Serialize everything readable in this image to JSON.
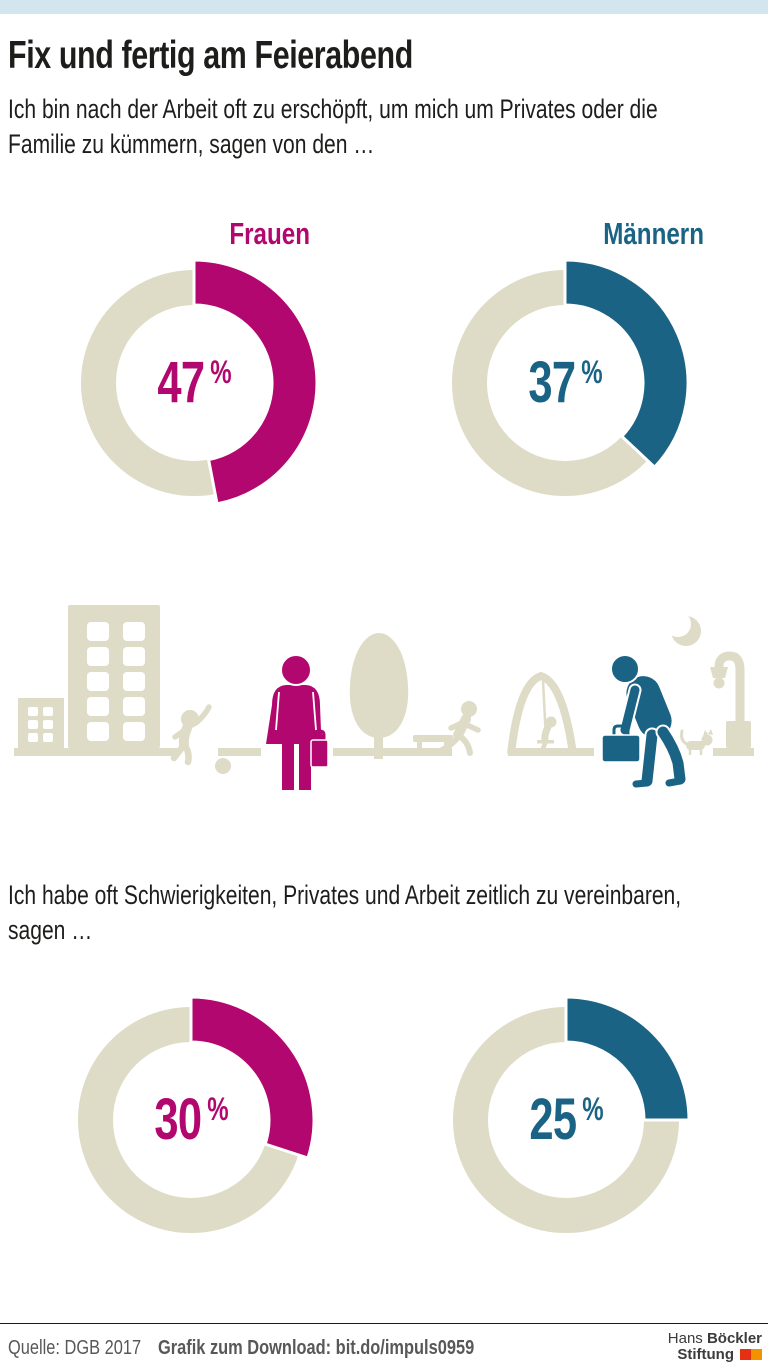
{
  "colors": {
    "magenta": "#b2076e",
    "teal": "#1b6385",
    "beige": "#dedcc6",
    "lightblue": "#d3e6f0",
    "text": "#1d1d1b",
    "footer_gray": "#58585a",
    "logo_red": "#e53012",
    "logo_orange": "#f39200"
  },
  "header": {
    "title": "Fix und fertig am Feierabend",
    "intro": "Ich bin nach der Arbeit oft zu erschöpft, um mich um Privates oder die Familie zu kümmern, sagen von den …"
  },
  "section2": {
    "question": "Ich habe oft Schwierigkeiten, Privates und Arbeit zeitlich zu vereinbaren, sagen …"
  },
  "chart_data": {
    "type": "pie",
    "subtype": "donut-grid",
    "unit": "%",
    "series_labels": [
      "Frauen",
      "Männern"
    ],
    "series_colors": {
      "Frauen": "#b2076e",
      "Männern": "#1b6385"
    },
    "remainder_color": "#dedcc6",
    "groups": [
      {
        "question": "Ich bin nach der Arbeit oft zu erschöpft, um mich um Privates oder die Familie zu kümmern, sagen von den …",
        "values": {
          "Frauen": 47,
          "Männern": 37
        }
      },
      {
        "question": "Ich habe oft Schwierigkeiten, Privates und Arbeit zeitlich zu vereinbaren, sagen …",
        "values": {
          "Frauen": 30,
          "Männern": 25
        }
      }
    ]
  },
  "footer": {
    "source": "Quelle: DGB 2017",
    "download": "Grafik zum Download: bit.do/impuls0959",
    "logo": {
      "line1_light": "Hans",
      "line1_bold": "Böckler",
      "line2_bold": "Stiftung"
    }
  }
}
